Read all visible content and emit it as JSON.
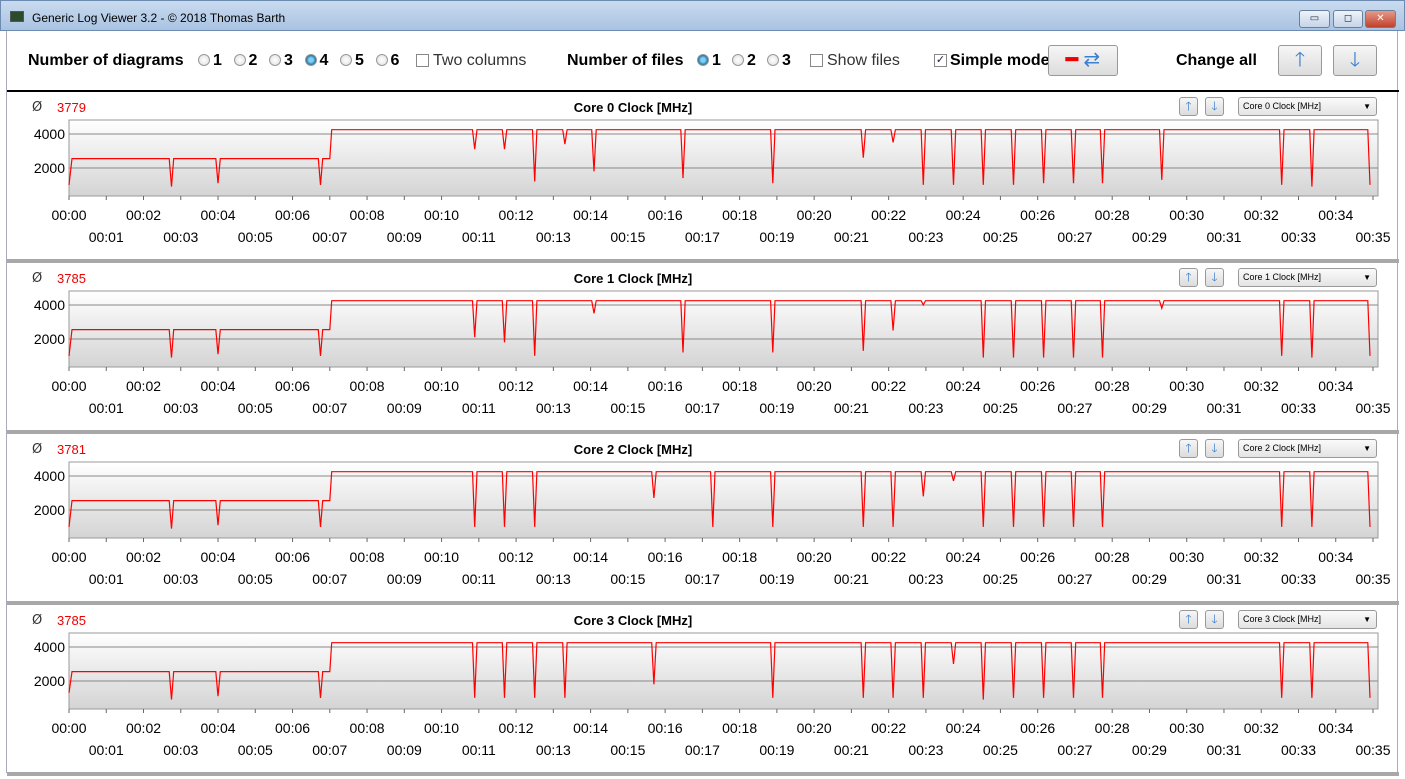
{
  "window": {
    "title": "Generic Log Viewer 3.2 - © 2018 Thomas Barth",
    "minimize": "▭",
    "maximize": "◻",
    "close": "✕"
  },
  "toolbar": {
    "num_diagrams_label": "Number of diagrams",
    "diagram_options": [
      "1",
      "2",
      "3",
      "4",
      "5",
      "6"
    ],
    "diagram_selected": "4",
    "two_columns_label": "Two columns",
    "two_columns_checked": false,
    "num_files_label": "Number of files",
    "file_options": [
      "1",
      "2",
      "3"
    ],
    "file_selected": "1",
    "show_files_label": "Show files",
    "show_files_checked": false,
    "simple_mode_label": "Simple mode",
    "simple_mode_checked": true,
    "change_all_label": "Change all"
  },
  "colors": {
    "line": "#ff0000",
    "avg": "#ee0000"
  },
  "chart_data": [
    {
      "type": "line",
      "title": "Core 0 Clock [MHz]",
      "avg_symbol": "Ø",
      "avg": "3779",
      "selector": "Core 0 Clock [MHz]",
      "dips": [
        [
          10.89,
          3100
        ],
        [
          11.69,
          3100
        ],
        [
          12.5,
          1200
        ],
        [
          13.31,
          3400
        ],
        [
          14.09,
          1800
        ],
        [
          16.48,
          1400
        ],
        [
          18.89,
          1100
        ],
        [
          21.32,
          2600
        ],
        [
          22.12,
          3500
        ],
        [
          22.93,
          1000
        ],
        [
          23.74,
          1000
        ],
        [
          24.54,
          1000
        ],
        [
          25.35,
          1000
        ],
        [
          26.16,
          1100
        ],
        [
          26.96,
          1100
        ],
        [
          27.74,
          1100
        ],
        [
          29.33,
          1300
        ],
        [
          32.55,
          1000
        ],
        [
          33.36,
          900
        ],
        [
          34.92,
          1000
        ]
      ]
    },
    {
      "type": "line",
      "title": "Core 1 Clock [MHz]",
      "avg_symbol": "Ø",
      "avg": "3785",
      "selector": "Core 1 Clock [MHz]",
      "dips": [
        [
          10.89,
          2100
        ],
        [
          11.69,
          1800
        ],
        [
          12.5,
          1000
        ],
        [
          14.09,
          3500
        ],
        [
          16.48,
          1200
        ],
        [
          18.89,
          1200
        ],
        [
          21.32,
          1300
        ],
        [
          22.12,
          2500
        ],
        [
          22.93,
          4000
        ],
        [
          24.54,
          900
        ],
        [
          25.35,
          900
        ],
        [
          26.16,
          900
        ],
        [
          26.96,
          900
        ],
        [
          27.74,
          900
        ],
        [
          29.33,
          3800
        ],
        [
          32.55,
          1000
        ],
        [
          33.36,
          900
        ],
        [
          34.92,
          1000
        ]
      ]
    },
    {
      "type": "line",
      "title": "Core 2 Clock [MHz]",
      "avg_symbol": "Ø",
      "avg": "3781",
      "selector": "Core 2 Clock [MHz]",
      "dips": [
        [
          10.89,
          1000
        ],
        [
          11.69,
          1000
        ],
        [
          12.5,
          1000
        ],
        [
          15.7,
          2700
        ],
        [
          17.28,
          1000
        ],
        [
          18.89,
          1000
        ],
        [
          21.32,
          1000
        ],
        [
          22.12,
          1000
        ],
        [
          22.93,
          2800
        ],
        [
          23.74,
          3700
        ],
        [
          24.54,
          1000
        ],
        [
          25.35,
          1000
        ],
        [
          26.16,
          1000
        ],
        [
          26.96,
          1000
        ],
        [
          27.74,
          1000
        ],
        [
          32.55,
          1000
        ],
        [
          33.36,
          1000
        ],
        [
          34.92,
          1000
        ]
      ]
    },
    {
      "type": "line",
      "title": "Core 3 Clock [MHz]",
      "avg_symbol": "Ø",
      "avg": "3785",
      "selector": "Core 3 Clock [MHz]",
      "dips": [
        [
          0.1,
          1300
        ],
        [
          10.89,
          1000
        ],
        [
          11.69,
          1000
        ],
        [
          12.5,
          1000
        ],
        [
          13.31,
          1000
        ],
        [
          15.7,
          1800
        ],
        [
          18.89,
          1000
        ],
        [
          21.32,
          1000
        ],
        [
          22.12,
          1000
        ],
        [
          22.93,
          1000
        ],
        [
          23.74,
          3000
        ],
        [
          24.54,
          900
        ],
        [
          25.35,
          1000
        ],
        [
          26.16,
          1000
        ],
        [
          26.96,
          1000
        ],
        [
          27.74,
          1000
        ],
        [
          32.55,
          1000
        ],
        [
          33.36,
          1000
        ],
        [
          34.92,
          1000
        ]
      ]
    }
  ],
  "axis": {
    "xlim_min": [
      0,
      35
    ],
    "ylim": [
      350,
      4820
    ],
    "yticks": [
      2000,
      4000
    ],
    "xticks": [
      "00:00",
      "00:01",
      "00:02",
      "00:03",
      "00:04",
      "00:05",
      "00:06",
      "00:07",
      "00:08",
      "00:09",
      "00:10",
      "00:11",
      "00:12",
      "00:13",
      "00:14",
      "00:15",
      "00:16",
      "00:17",
      "00:18",
      "00:19",
      "00:20",
      "00:21",
      "00:22",
      "00:23",
      "00:24",
      "00:25",
      "00:26",
      "00:27",
      "00:28",
      "00:29",
      "00:30",
      "00:31",
      "00:32",
      "00:33",
      "00:34",
      "00:35"
    ],
    "low_phase": {
      "until_min": 7.0,
      "value": 2550,
      "dips": [
        [
          2.75,
          900
        ],
        [
          4.0,
          1100
        ],
        [
          6.75,
          1000
        ]
      ]
    },
    "high_value": 4250
  }
}
